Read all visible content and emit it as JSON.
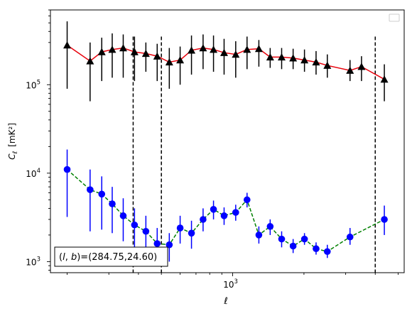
{
  "chart_data": {
    "type": "scatter",
    "title": "",
    "xlabel": "ℓ",
    "ylabel": "C_ℓ [mK²]",
    "xscale": "log",
    "yscale": "log",
    "xlim": [
      170,
      5300
    ],
    "ylim": [
      750,
      700000
    ],
    "x_tick_labels": [
      {
        "value": 1000,
        "base": "10",
        "exp": "3"
      }
    ],
    "y_tick_labels": [
      {
        "value": 1000,
        "base": "10",
        "exp": "3"
      },
      {
        "value": 10000,
        "base": "10",
        "exp": "4"
      },
      {
        "value": 100000,
        "base": "10",
        "exp": "5"
      }
    ],
    "grid": false,
    "legend": {
      "placement": "top-right",
      "entries": []
    },
    "annotation": "(l, b)=(284.75,24.60)",
    "vlines": [
      380,
      500,
      4000
    ],
    "x": [
      200,
      220,
      250,
      280,
      310,
      345,
      385,
      430,
      480,
      540,
      600,
      670,
      750,
      830,
      920,
      1030,
      1150,
      1290,
      1440,
      1610,
      1800,
      2010,
      2250,
      2510,
      2800,
      3130,
      3500,
      3910,
      4370,
      4880
    ],
    "series": [
      {
        "name": "",
        "color": "#000000",
        "line_color": "#e8000b",
        "marker": "triangle",
        "line_style": "solid",
        "y": [
          280000,
          185000,
          235000,
          250000,
          260000,
          235000,
          225000,
          210000,
          180000,
          190000,
          245000,
          260000,
          250000,
          230000,
          220000,
          250000,
          255000,
          205000,
          205000,
          200000,
          190000,
          180000,
          165000,
          145000,
          160000,
          115000
        ],
        "x_idx": [
          0,
          2,
          3,
          4,
          5,
          6,
          7,
          8,
          9,
          10,
          11,
          12,
          13,
          14,
          15,
          16,
          17,
          18,
          19,
          20,
          21,
          22,
          23,
          25,
          26,
          28
        ],
        "err_low": [
          90000,
          65000,
          110000,
          120000,
          120000,
          110000,
          140000,
          110000,
          90000,
          100000,
          130000,
          150000,
          140000,
          130000,
          120000,
          150000,
          160000,
          155000,
          150000,
          150000,
          140000,
          130000,
          120000,
          110000,
          110000,
          65000
        ],
        "err_high": [
          520000,
          300000,
          340000,
          380000,
          370000,
          350000,
          300000,
          290000,
          260000,
          270000,
          360000,
          370000,
          360000,
          330000,
          310000,
          350000,
          320000,
          260000,
          260000,
          255000,
          250000,
          240000,
          220000,
          190000,
          210000,
          170000
        ]
      },
      {
        "name": "",
        "color": "#0000ff",
        "line_color": "#008000",
        "marker": "circle",
        "line_style": "dashed",
        "y": [
          11000,
          6500,
          5800,
          4500,
          3300,
          2600,
          2200,
          1600,
          1550,
          2400,
          2100,
          3000,
          3900,
          3300,
          3600,
          5000,
          2000,
          2500,
          1800,
          1500,
          1800,
          1400,
          1300,
          1900,
          3000
        ],
        "x_idx": [
          0,
          2,
          3,
          4,
          5,
          6,
          7,
          8,
          9,
          10,
          11,
          12,
          13,
          14,
          15,
          16,
          17,
          18,
          19,
          20,
          21,
          22,
          23,
          25,
          28
        ],
        "err_low": [
          3200,
          2200,
          2300,
          2100,
          1700,
          1300,
          1400,
          1000,
          1000,
          1600,
          1400,
          2200,
          3000,
          2600,
          2900,
          4100,
          1600,
          2000,
          1450,
          1250,
          1550,
          1200,
          1100,
          1550,
          2000
        ],
        "err_high": [
          18500,
          11000,
          9200,
          7000,
          5200,
          4000,
          3300,
          2400,
          2100,
          3300,
          2900,
          4000,
          4900,
          4100,
          4400,
          6000,
          2500,
          3000,
          2200,
          1800,
          2100,
          1650,
          1550,
          2400,
          4300
        ]
      }
    ]
  }
}
